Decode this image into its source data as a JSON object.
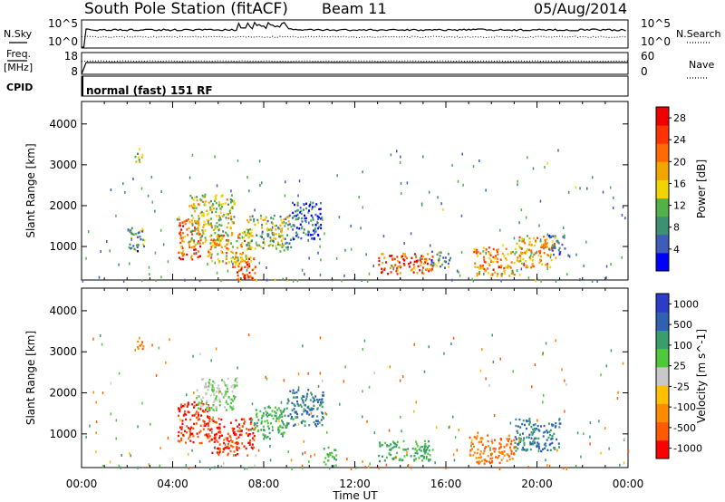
{
  "header": {
    "station": "South Pole Station (fitACF)",
    "beam": "Beam 11",
    "date": "05/Aug/2014"
  },
  "left_labels": {
    "nsky": "N.Sky",
    "freq": "Freq.",
    "freq_unit": "[MHz]",
    "cpid": "CPID"
  },
  "right_labels": {
    "nsearch": "N.Search",
    "nave": "Nave"
  },
  "sky_axis": {
    "top": "10^5",
    "bottom": "10^0"
  },
  "freq_axis": {
    "top": "18",
    "bottom": "8"
  },
  "nave_axis": {
    "top": "60",
    "bottom": "0"
  },
  "cpid_text": "normal (fast) 151 RF",
  "x_axis": {
    "label": "Time UT",
    "ticks": [
      "00:00",
      "04:00",
      "08:00",
      "12:00",
      "16:00",
      "20:00",
      "00:00"
    ]
  },
  "y_axis": {
    "label": "Slant Range [km]",
    "ticks": [
      "1000",
      "2000",
      "3000",
      "4000"
    ]
  },
  "colors": {
    "power_scale": [
      "#0000ff",
      "#3e5cb8",
      "#3f8f73",
      "#52b248",
      "#f2d500",
      "#f2a600",
      "#ff6a00",
      "#ff3300",
      "#ee0000"
    ],
    "velocity_scale": [
      "#ff0000",
      "#ff5a00",
      "#ff8c00",
      "#ffc000",
      "#c8c8c8",
      "#50c83c",
      "#3a9e6a",
      "#3060b0",
      "#2a3cc8"
    ]
  },
  "chart_data": [
    {
      "type": "heatmap",
      "title": "Power",
      "xlabel": "Time UT",
      "ylabel": "Slant Range [km]",
      "xlim": [
        "00:00",
        "24:00"
      ],
      "ylim": [
        180,
        4550
      ],
      "colorbar": {
        "label": "Power [dB]",
        "ticks": [
          4,
          8,
          12,
          16,
          20,
          24,
          28
        ],
        "range": [
          0,
          30
        ]
      },
      "regions": [
        {
          "t0": 2.3,
          "t1": 2.7,
          "r0": 3050,
          "r1": 3300,
          "dB": 14
        },
        {
          "t0": 2.0,
          "t1": 2.8,
          "r0": 900,
          "r1": 1500,
          "dB": 10
        },
        {
          "t0": 4.2,
          "t1": 5.2,
          "r0": 700,
          "r1": 1700,
          "dB": 22
        },
        {
          "t0": 4.7,
          "t1": 6.7,
          "r0": 1100,
          "r1": 2300,
          "dB": 14
        },
        {
          "t0": 5.5,
          "t1": 7.4,
          "r0": 600,
          "r1": 1400,
          "dB": 18
        },
        {
          "t0": 6.6,
          "t1": 7.6,
          "r0": 200,
          "r1": 800,
          "dB": 22
        },
        {
          "t0": 7.2,
          "t1": 9.2,
          "r0": 900,
          "r1": 1800,
          "dB": 12
        },
        {
          "t0": 9.2,
          "t1": 10.6,
          "r0": 1200,
          "r1": 2100,
          "dB": 6
        },
        {
          "t0": 13.0,
          "t1": 15.4,
          "r0": 350,
          "r1": 850,
          "dB": 24
        },
        {
          "t0": 15.3,
          "t1": 16.2,
          "r0": 500,
          "r1": 900,
          "dB": 10
        },
        {
          "t0": 17.2,
          "t1": 19.0,
          "r0": 300,
          "r1": 1000,
          "dB": 20
        },
        {
          "t0": 19.0,
          "t1": 20.8,
          "r0": 500,
          "r1": 1300,
          "dB": 18
        },
        {
          "t0": 20.5,
          "t1": 21.2,
          "r0": 800,
          "r1": 1300,
          "dB": 8
        }
      ]
    },
    {
      "type": "heatmap",
      "title": "Velocity",
      "xlabel": "Time UT",
      "ylabel": "Slant Range [km]",
      "xlim": [
        "00:00",
        "24:00"
      ],
      "ylim": [
        180,
        4550
      ],
      "colorbar": {
        "label": "Velocity [m s^-1]",
        "ticks": [
          1000,
          500,
          100,
          25,
          -25,
          -100,
          -500,
          -1000
        ]
      },
      "regions": [
        {
          "t0": 2.3,
          "t1": 2.7,
          "r0": 3050,
          "r1": 3300,
          "v": -100
        },
        {
          "t0": 4.2,
          "t1": 5.6,
          "r0": 800,
          "r1": 1800,
          "v": -500
        },
        {
          "t0": 5.0,
          "t1": 6.8,
          "r0": 1600,
          "r1": 2400,
          "v": 25
        },
        {
          "t0": 5.6,
          "t1": 7.6,
          "r0": 500,
          "r1": 1400,
          "v": -500
        },
        {
          "t0": 7.4,
          "t1": 9.0,
          "r0": 900,
          "r1": 1700,
          "v": 100
        },
        {
          "t0": 9.0,
          "t1": 10.6,
          "r0": 1200,
          "r1": 2100,
          "v": 500
        },
        {
          "t0": 10.6,
          "t1": 11.2,
          "r0": 200,
          "r1": 700,
          "v": 100
        },
        {
          "t0": 13.0,
          "t1": 15.4,
          "r0": 350,
          "r1": 850,
          "v": 100
        },
        {
          "t0": 17.0,
          "t1": 19.0,
          "r0": 300,
          "r1": 1000,
          "v": -100
        },
        {
          "t0": 19.0,
          "t1": 21.0,
          "r0": 600,
          "r1": 1400,
          "v": 500
        }
      ]
    }
  ]
}
